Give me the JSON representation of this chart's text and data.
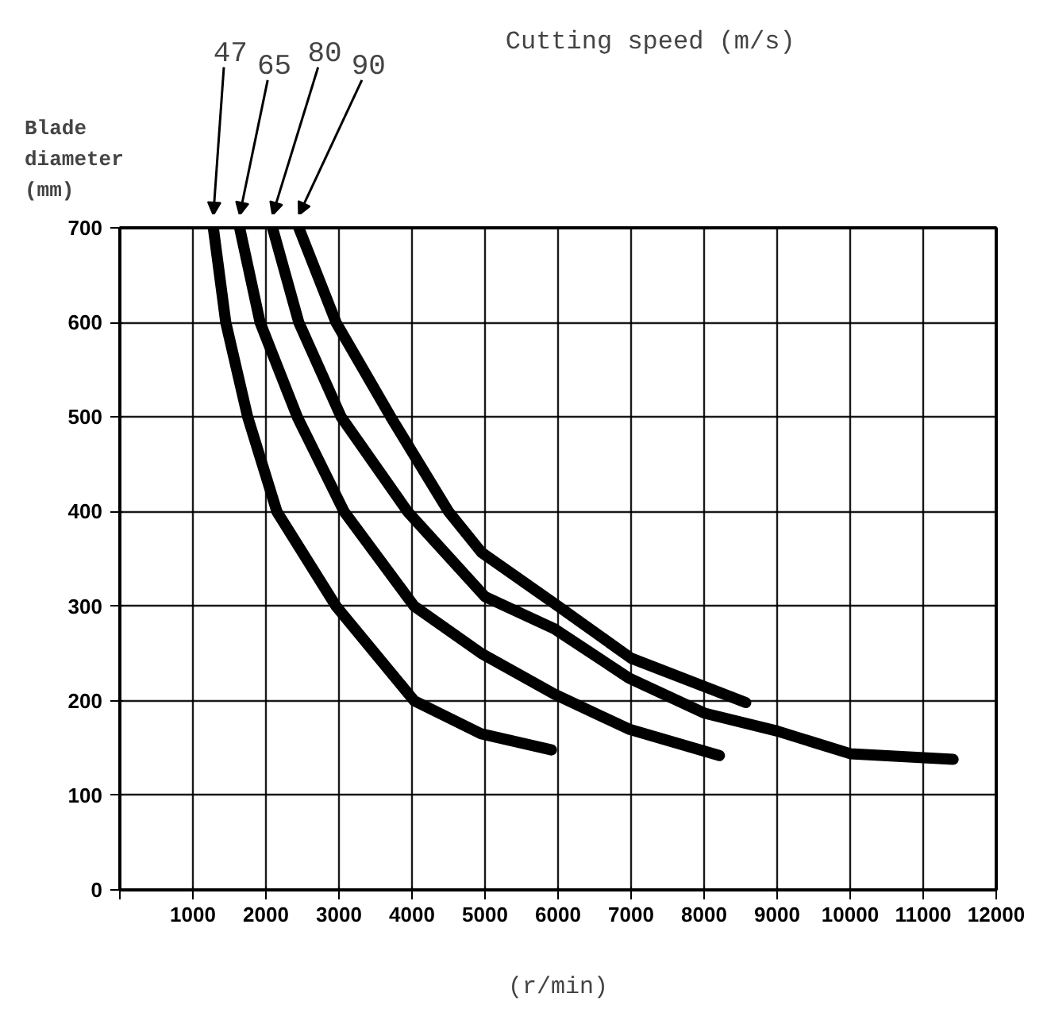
{
  "chart_data": {
    "type": "line",
    "legend_title": "Cutting speed (m/s)",
    "xlabel": "(r/min)",
    "ylabel": "Blade diameter (mm)",
    "series": [
      {
        "name": "47",
        "color": "#000000",
        "x": [
          1280,
          1450,
          1750,
          2150,
          2960,
          4030,
          4950,
          5910
        ],
        "values": [
          700,
          600,
          500,
          400,
          300,
          200,
          165,
          148
        ]
      },
      {
        "name": "65",
        "color": "#000000",
        "x": [
          1640,
          1920,
          2430,
          3070,
          4030,
          4950,
          5950,
          6970,
          8210
        ],
        "values": [
          700,
          600,
          500,
          400,
          300,
          250,
          207,
          170,
          142
        ]
      },
      {
        "name": "80",
        "color": "#000000",
        "x": [
          2090,
          2450,
          3030,
          3940,
          5000,
          5950,
          6970,
          8000,
          9000,
          10000,
          11410
        ],
        "values": [
          700,
          600,
          500,
          400,
          310,
          276,
          224,
          187,
          168,
          144,
          138
        ]
      },
      {
        "name": "90",
        "color": "#000000",
        "x": [
          2450,
          2960,
          3710,
          4500,
          4950,
          6000,
          7000,
          8570
        ],
        "values": [
          700,
          600,
          500,
          400,
          357,
          300,
          245,
          198
        ]
      }
    ],
    "xlim": [
      0,
      12000
    ],
    "ylim": [
      0,
      700
    ],
    "xticks": [
      {
        "value": 0,
        "label": null
      },
      1000,
      2000,
      3000,
      4000,
      5000,
      6000,
      7000,
      8000,
      9000,
      10000,
      11000,
      12000
    ],
    "yticks": [
      0,
      100,
      200,
      300,
      400,
      500,
      600,
      700
    ],
    "grid": true,
    "legend": false,
    "marker": "none",
    "line_style": "solid"
  }
}
